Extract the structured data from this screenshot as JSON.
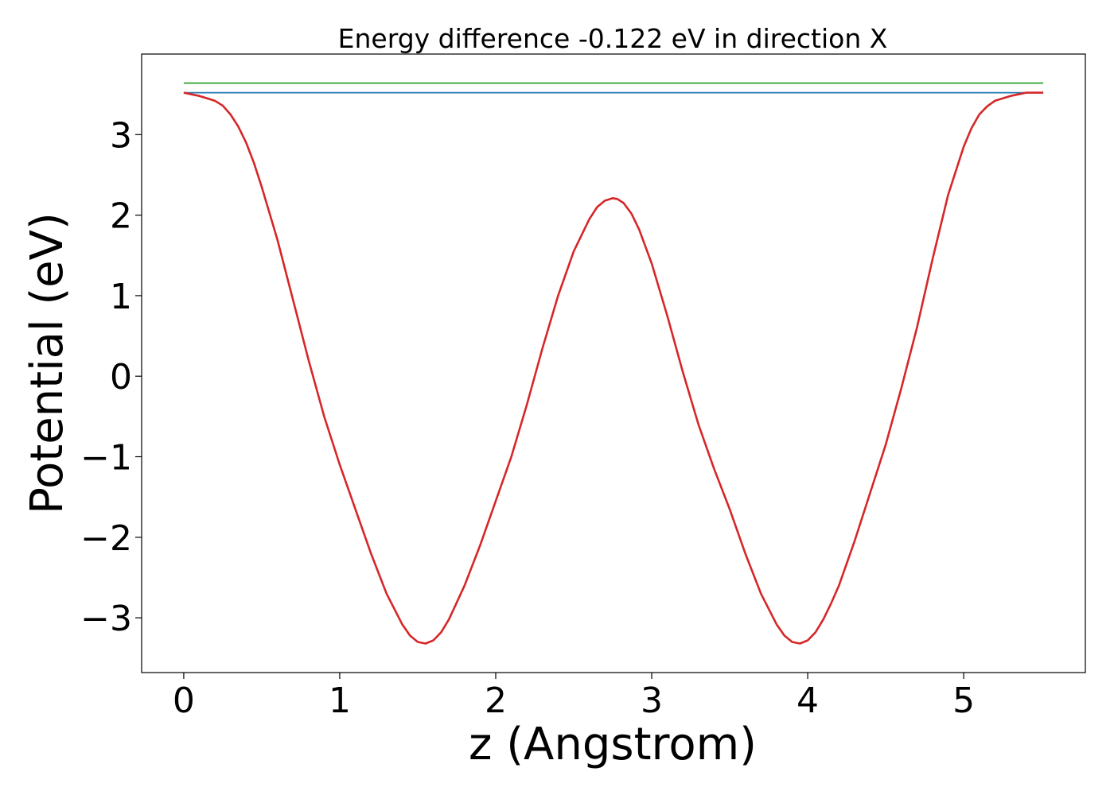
{
  "chart_data": {
    "type": "line",
    "title": "Energy difference -0.122 eV in direction X",
    "xlabel": "z (Angstrom)",
    "ylabel": "Potential (eV)",
    "xlim": [
      -0.27,
      5.78
    ],
    "ylim": [
      -3.68,
      4.0
    ],
    "xticks": [
      0,
      1,
      2,
      3,
      4,
      5
    ],
    "xtick_labels": [
      "0",
      "1",
      "2",
      "3",
      "4",
      "5"
    ],
    "yticks": [
      -3,
      -2,
      -1,
      0,
      1,
      2,
      3
    ],
    "ytick_labels": [
      "−3",
      "−2",
      "−1",
      "0",
      "1",
      "2",
      "3"
    ],
    "grid": false,
    "legend": "none",
    "series": [
      {
        "color": "#2ca02c",
        "x": [
          0,
          5.51
        ],
        "y": [
          3.64,
          3.64
        ]
      },
      {
        "color": "#1f77b4",
        "x": [
          0,
          5.51
        ],
        "y": [
          3.52,
          3.52
        ]
      },
      {
        "color": "#d62728",
        "x": [
          0,
          0.1,
          0.2,
          0.25,
          0.3,
          0.35,
          0.4,
          0.45,
          0.5,
          0.6,
          0.7,
          0.8,
          0.9,
          1.0,
          1.1,
          1.2,
          1.3,
          1.4,
          1.45,
          1.5,
          1.55,
          1.6,
          1.65,
          1.7,
          1.8,
          1.9,
          2.0,
          2.1,
          2.2,
          2.3,
          2.4,
          2.5,
          2.6,
          2.65,
          2.7,
          2.75,
          2.78,
          2.82,
          2.87,
          2.92,
          3.0,
          3.1,
          3.2,
          3.3,
          3.4,
          3.5,
          3.6,
          3.7,
          3.8,
          3.85,
          3.9,
          3.95,
          4.0,
          4.05,
          4.1,
          4.15,
          4.2,
          4.3,
          4.4,
          4.5,
          4.6,
          4.7,
          4.8,
          4.9,
          5.0,
          5.05,
          5.1,
          5.15,
          5.2,
          5.25,
          5.3,
          5.35,
          5.4,
          5.45,
          5.51
        ],
        "y": [
          3.52,
          3.48,
          3.42,
          3.36,
          3.25,
          3.1,
          2.9,
          2.65,
          2.35,
          1.7,
          0.95,
          0.2,
          -0.5,
          -1.1,
          -1.65,
          -2.2,
          -2.7,
          -3.08,
          -3.22,
          -3.3,
          -3.32,
          -3.28,
          -3.18,
          -3.02,
          -2.6,
          -2.1,
          -1.55,
          -1.0,
          -0.35,
          0.35,
          1.0,
          1.55,
          1.95,
          2.1,
          2.18,
          2.21,
          2.2,
          2.15,
          2.02,
          1.82,
          1.4,
          0.75,
          0.05,
          -0.6,
          -1.15,
          -1.65,
          -2.2,
          -2.7,
          -3.08,
          -3.22,
          -3.3,
          -3.32,
          -3.28,
          -3.18,
          -3.02,
          -2.82,
          -2.6,
          -2.05,
          -1.45,
          -0.85,
          -0.15,
          0.6,
          1.45,
          2.25,
          2.85,
          3.08,
          3.25,
          3.35,
          3.42,
          3.45,
          3.48,
          3.5,
          3.52,
          3.52,
          3.52
        ]
      }
    ]
  }
}
